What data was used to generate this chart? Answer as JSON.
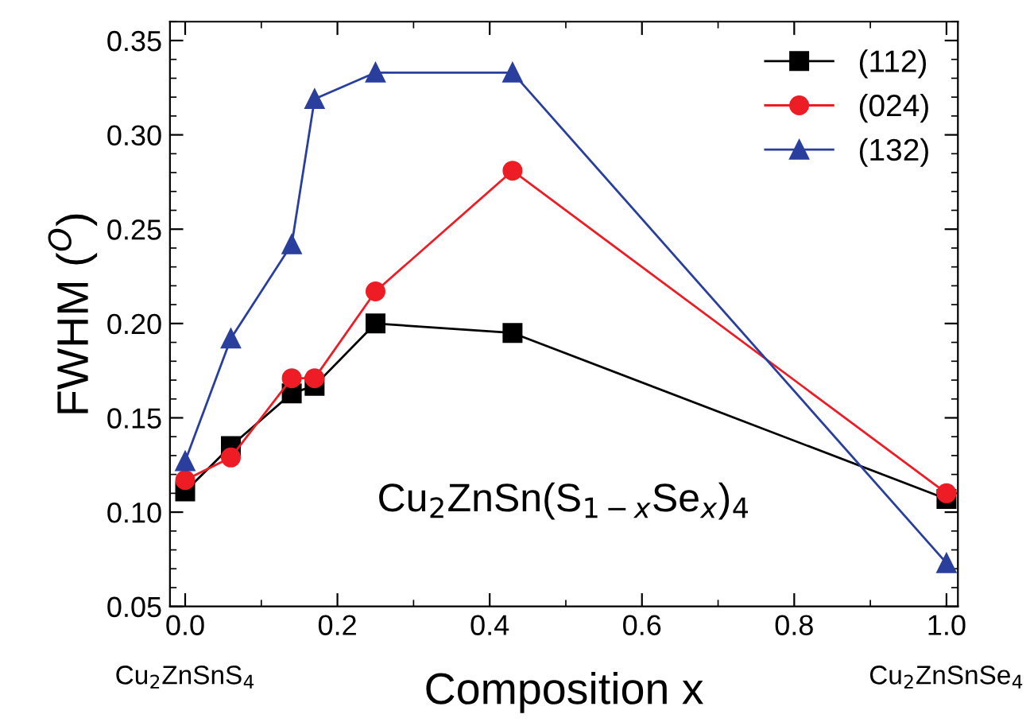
{
  "chart_data": {
    "type": "line",
    "xlabel": "Composition x",
    "ylabel": "FWHM ($^{O}$)",
    "x": [
      0,
      0.06,
      0.14,
      0.17,
      0.25,
      0.43,
      1.0
    ],
    "series": [
      {
        "name": "(112)",
        "color": "#000000",
        "marker": "square",
        "values": [
          0.111,
          0.135,
          0.163,
          0.167,
          0.2,
          0.195,
          0.107
        ]
      },
      {
        "name": "(024)",
        "color": "#ee1c25",
        "marker": "circle",
        "values": [
          0.117,
          0.129,
          0.171,
          0.171,
          0.217,
          0.281,
          0.11
        ]
      },
      {
        "name": "(132)",
        "color": "#2a3f9d",
        "marker": "triangle",
        "values": [
          0.127,
          0.192,
          0.242,
          0.319,
          0.333,
          0.333,
          0.073
        ]
      }
    ],
    "xlim": [
      -0.02,
      1.015
    ],
    "ylim": [
      0.05,
      0.36
    ],
    "xticks": [
      {
        "value": 0,
        "label": "0.0"
      },
      0.2,
      0.4,
      0.6,
      0.8,
      {
        "value": 1.0,
        "label": "1.0"
      }
    ],
    "yticks": [
      0.05,
      {
        "value": 0.1,
        "label": "0.10"
      },
      0.15,
      {
        "value": 0.2,
        "label": "0.20"
      },
      0.25,
      {
        "value": 0.3,
        "label": "0.30"
      },
      0.35
    ],
    "annotations": [
      "Cu$_{2}$ZnSn(S$_{1−x}$Se$_{x}$)$_{4}$",
      "Cu$_{2}$ZnSnS$_{4}$",
      "Cu$_{2}$ZnSnSe$_{4}$"
    ],
    "legend": "top right",
    "grid": false
  }
}
